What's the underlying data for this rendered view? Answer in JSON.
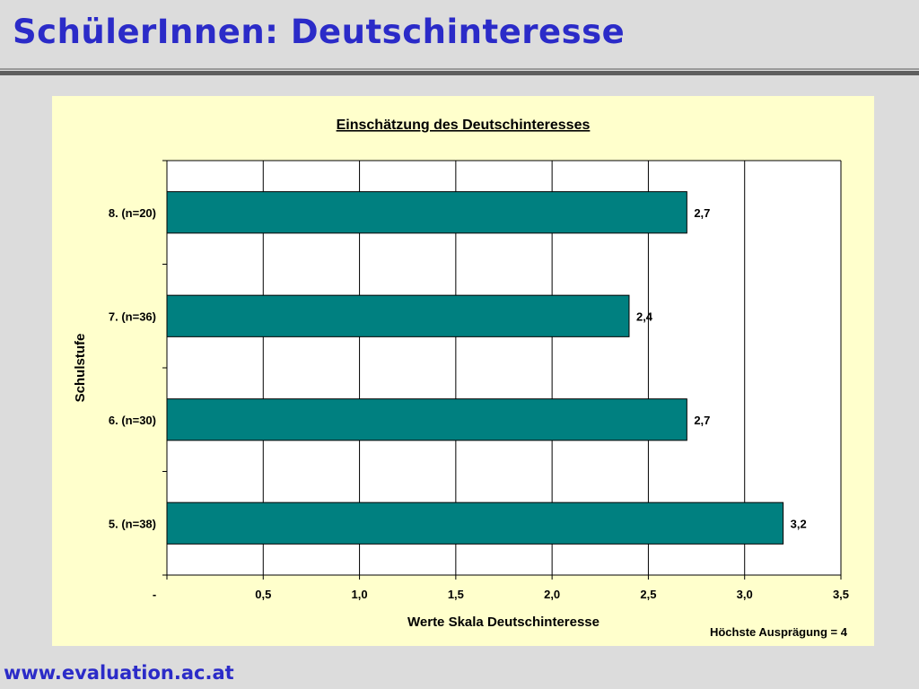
{
  "slide": {
    "title": "SchülerInnen: Deutschinteresse",
    "footer": "www.evaluation.ac.at"
  },
  "colors": {
    "title": "#2b2bc8",
    "bar": "#008080",
    "panel": "#ffffcc",
    "plot": "#ffffff"
  },
  "chart_data": {
    "type": "bar",
    "orientation": "horizontal",
    "title": "Einschätzung des Deutschinteresses",
    "xlabel": "Werte Skala Deutschinteresse",
    "ylabel": "Schulstufe",
    "note": "Höchste Ausprägung = 4",
    "categories": [
      "5. (n=38)",
      "6. (n=30)",
      "7. (n=36)",
      "8. (n=20)"
    ],
    "values": [
      3.2,
      2.7,
      2.4,
      2.7
    ],
    "value_labels": [
      "3,2",
      "2,7",
      "2,4",
      "2,7"
    ],
    "xlim": [
      0,
      3.5
    ],
    "xticks": [
      0,
      0.5,
      1.0,
      1.5,
      2.0,
      2.5,
      3.0,
      3.5
    ],
    "xtick_labels": [
      "-",
      "0,5",
      "1,0",
      "1,5",
      "2,0",
      "2,5",
      "3,0",
      "3,5"
    ],
    "grid": true,
    "legend": "none"
  }
}
